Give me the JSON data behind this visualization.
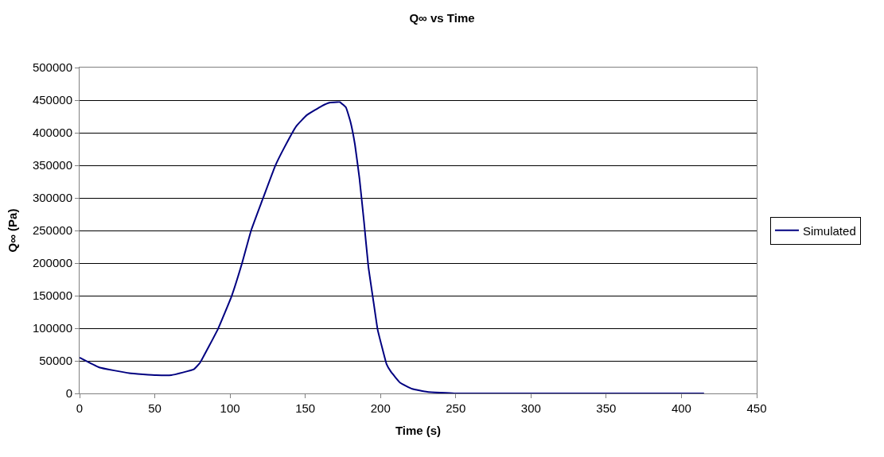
{
  "chart_data": {
    "type": "line",
    "title": "Q∞ vs Time",
    "xlabel": "Time (s)",
    "ylabel": "Q∞ (Pa)",
    "xlim": [
      0,
      450
    ],
    "xticks": [
      0,
      50,
      100,
      150,
      200,
      250,
      300,
      350,
      400,
      450
    ],
    "ylim": [
      0,
      500000
    ],
    "yticks": [
      0,
      50000,
      100000,
      150000,
      200000,
      250000,
      300000,
      350000,
      400000,
      450000,
      500000
    ],
    "grid": "y",
    "legend": "right",
    "marker": "none",
    "line_style": "solid",
    "series": [
      {
        "name": "Simulated",
        "color": "#000080",
        "x": [
          0,
          13,
          33,
          51,
          61,
          76,
          80,
          92,
          101,
          108,
          114,
          122,
          130,
          136,
          144,
          151,
          161,
          166,
          171,
          173,
          177,
          180,
          183,
          186,
          189,
          192,
          195,
          198,
          201,
          204,
          207,
          213,
          221,
          231,
          249,
          300,
          350,
          400,
          415
        ],
        "values": [
          55000,
          40000,
          31000,
          28000,
          28000,
          37000,
          47000,
          99000,
          149000,
          200000,
          250000,
          300000,
          349000,
          377000,
          410000,
          427000,
          441000,
          446000,
          447000,
          447000,
          439000,
          417000,
          382000,
          330000,
          264000,
          193000,
          146000,
          99000,
          71000,
          45000,
          33000,
          16500,
          7000,
          2400,
          0,
          0,
          0,
          0,
          0
        ]
      }
    ]
  }
}
